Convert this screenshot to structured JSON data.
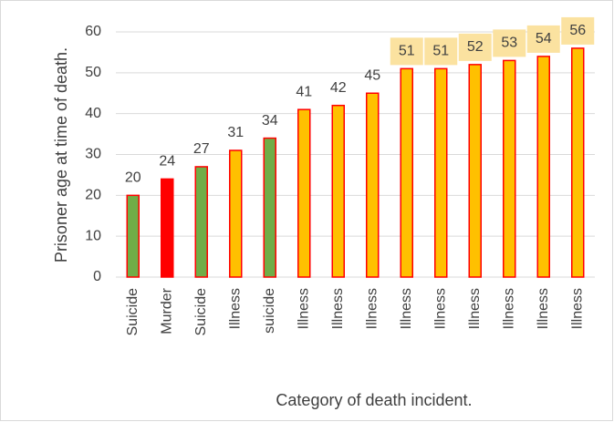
{
  "chart_data": {
    "type": "bar",
    "x_label": "Category of death incident.",
    "y_label": "Prisoner age at time of death.",
    "categories": [
      "Suicide",
      "Murder",
      "Suicide",
      "Illness",
      "suicide",
      "Illness",
      "Illness",
      "Illness",
      "Illness",
      "Illness",
      "Illness",
      "Illness",
      "Illness",
      "Illness"
    ],
    "values": [
      20,
      24,
      27,
      31,
      34,
      41,
      42,
      45,
      51,
      51,
      52,
      53,
      54,
      56
    ],
    "colors": [
      "#70ad47",
      "#ff0000",
      "#70ad47",
      "#ffc000",
      "#70ad47",
      "#ffc000",
      "#ffc000",
      "#ffc000",
      "#ffc000",
      "#ffc000",
      "#ffc000",
      "#ffc000",
      "#ffc000",
      "#ffc000"
    ],
    "border_color": "#ff0000",
    "label_backgrounds": [
      null,
      null,
      null,
      null,
      null,
      null,
      null,
      null,
      "#fbe2a0",
      "#fbe2a0",
      "#fbe2a0",
      "#fbe2a0",
      "#fbe2a0",
      "#fbe2a0"
    ],
    "ylim": [
      0,
      60
    ],
    "yticks": [
      0,
      10,
      20,
      30,
      40,
      50,
      60
    ],
    "grid": true
  }
}
